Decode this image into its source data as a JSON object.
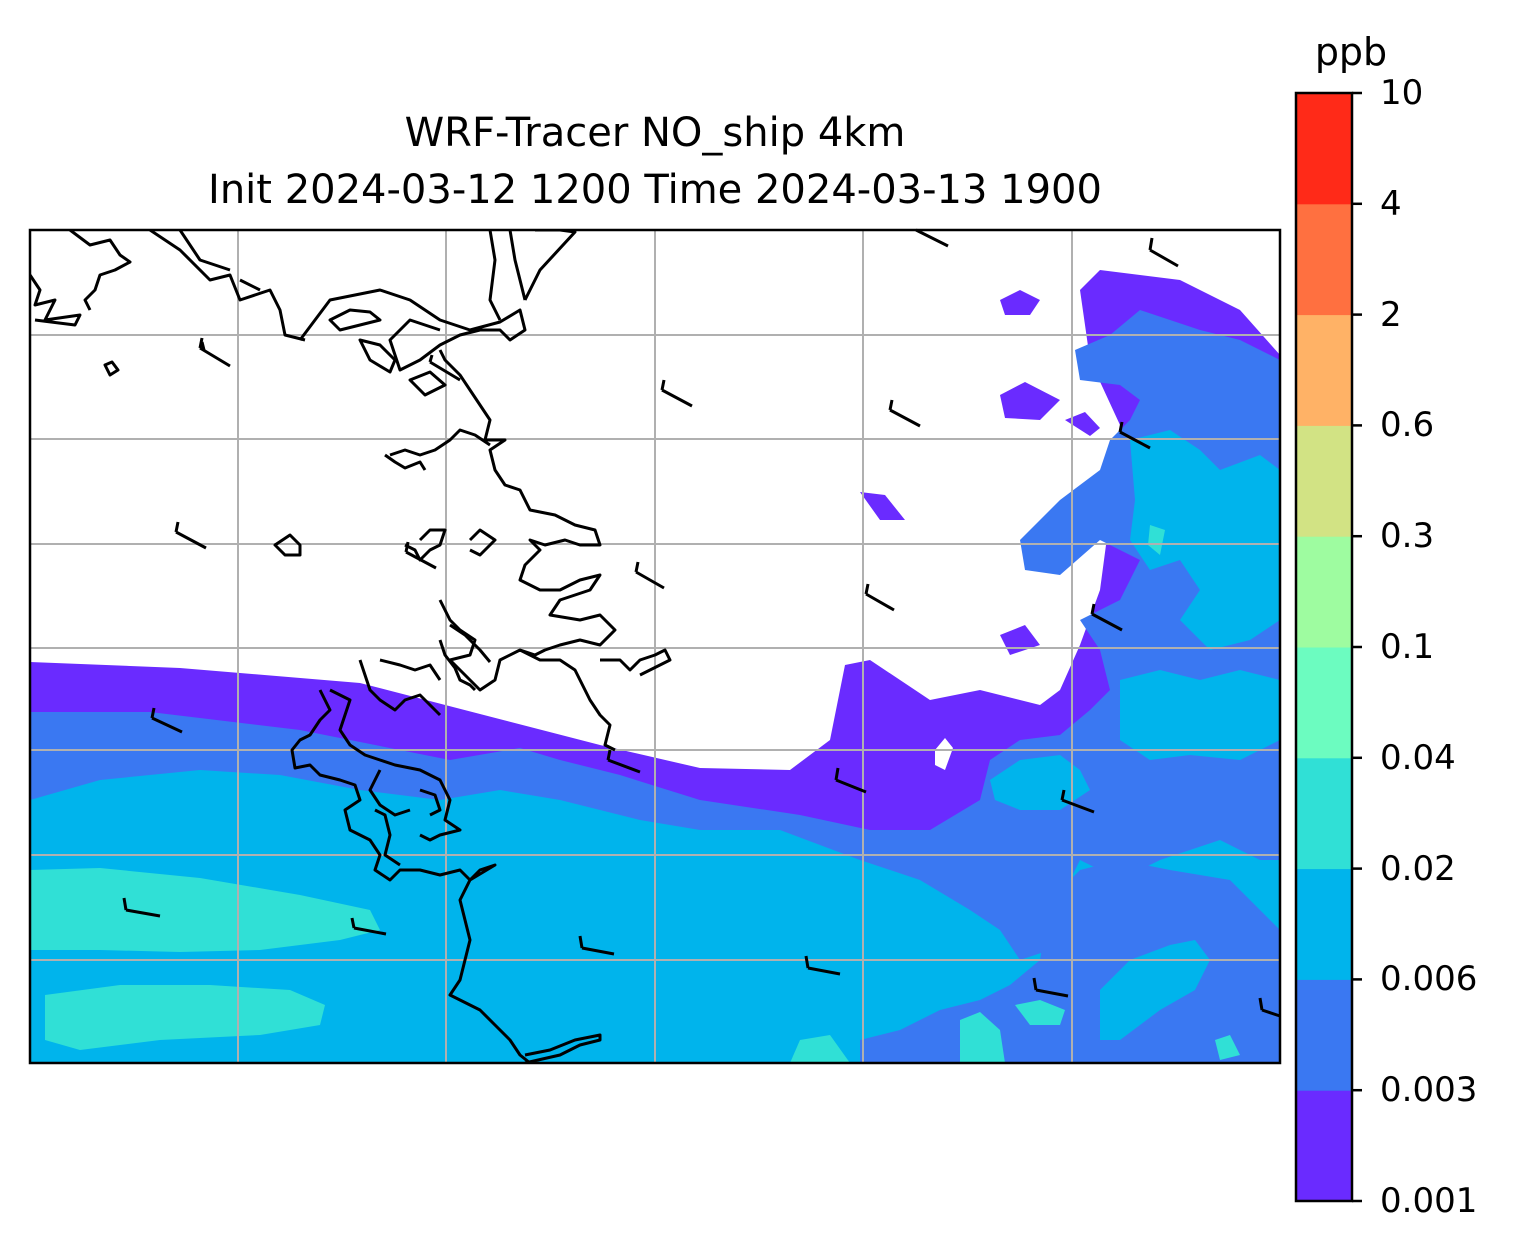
{
  "title": {
    "line1": "WRF-Tracer NO_ship 4km",
    "line2": "Init 2024-03-12 1200 Time 2024-03-13 1900"
  },
  "colorbar": {
    "unit": "ppb",
    "levels": [
      "0.001",
      "0.003",
      "0.006",
      "0.02",
      "0.04",
      "0.1",
      "0.3",
      "0.6",
      "2",
      "4",
      "10"
    ],
    "colors": [
      "#6a2bff",
      "#3a78f2",
      "#00b4ec",
      "#30e0d6",
      "#6cfcc0",
      "#9efca0",
      "#d2e384",
      "#ffb266",
      "#ff7040",
      "#ff2a18"
    ]
  },
  "map": {
    "gridlines": true,
    "coastline_color": "#000000",
    "wind_barbs": true
  }
}
